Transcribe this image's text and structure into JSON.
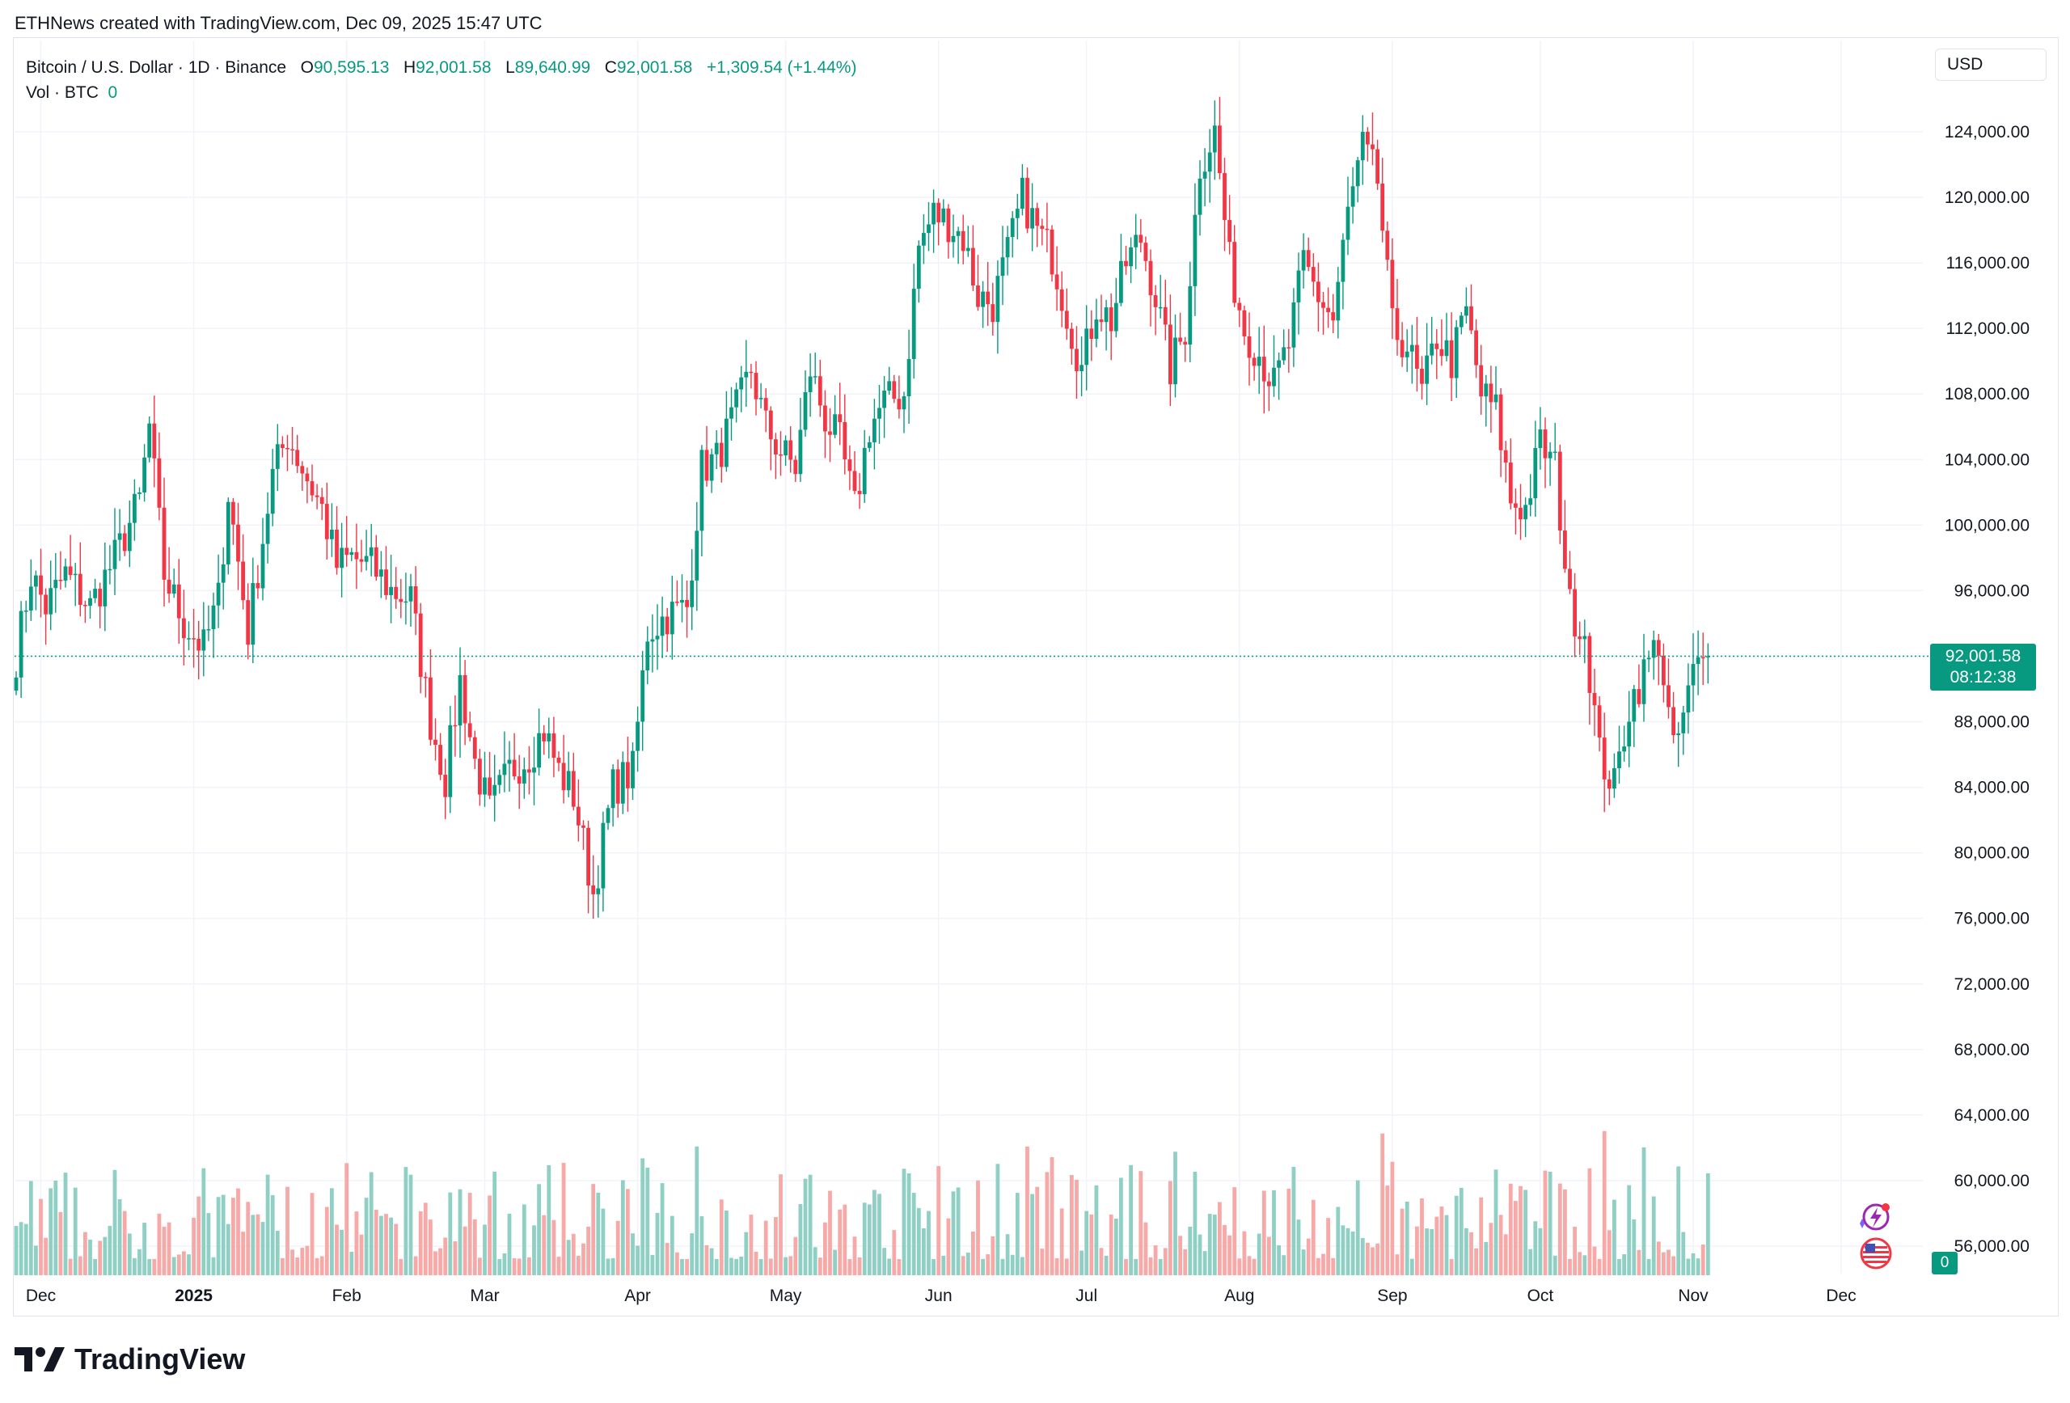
{
  "credit": "ETHNews created with TradingView.com, Dec 09, 2025 15:47 UTC",
  "legend": {
    "symbol": "Bitcoin / U.S. Dollar · 1D · Binance",
    "o_label": "O",
    "o_value": "90,595.13",
    "h_label": "H",
    "h_value": "92,001.58",
    "l_label": "L",
    "l_value": "89,640.99",
    "c_label": "C",
    "c_value": "92,001.58",
    "change": "+1,309.54 (+1.44%)",
    "vol_label": "Vol · BTC",
    "vol_value": "0"
  },
  "currency_button": "USD",
  "price_tag": {
    "price": "92,001.58",
    "countdown": "08:12:38"
  },
  "volume_tag": "0",
  "brand": "TradingView",
  "icons": [
    "lightning-icon",
    "us-flag-icon",
    "tradingview-logo-icon"
  ],
  "colors": {
    "up": "#089981",
    "down": "#f23645",
    "up_vol": "#8fcfc4",
    "down_vol": "#f7a9a7",
    "grid": "#f0f3fa"
  },
  "chart_data": {
    "type": "candlestick",
    "title": "Bitcoin / U.S. Dollar · 1D · Binance",
    "y_ticks": [
      124000,
      120000,
      116000,
      112000,
      108000,
      104000,
      100000,
      96000,
      92000,
      88000,
      84000,
      80000,
      76000,
      72000,
      68000,
      64000,
      60000,
      56000
    ],
    "y_tick_labels": [
      "124,000.00",
      "120,000.00",
      "116,000.00",
      "112,000.00",
      "108,000.00",
      "104,000.00",
      "100,000.00",
      "96,000.00",
      "92,000.00",
      "88,000.00",
      "84,000.00",
      "80,000.00",
      "76,000.00",
      "72,000.00",
      "68,000.00",
      "64,000.00",
      "60,000.00",
      "56,000.00"
    ],
    "ylim": [
      53500,
      128000
    ],
    "x_labels": [
      "Dec",
      "2025",
      "Feb",
      "Mar",
      "Apr",
      "May",
      "Jun",
      "Jul",
      "Aug",
      "Sep",
      "Oct",
      "Nov",
      "Dec"
    ],
    "x_label_days": [
      5,
      36,
      67,
      95,
      126,
      156,
      187,
      217,
      248,
      279,
      309,
      340,
      370
    ],
    "total_days": 378,
    "anchors": [
      [
        0,
        92000
      ],
      [
        3,
        97000
      ],
      [
        6,
        95000
      ],
      [
        10,
        97000
      ],
      [
        15,
        95000
      ],
      [
        20,
        98000
      ],
      [
        25,
        101500
      ],
      [
        27,
        106000
      ],
      [
        30,
        97000
      ],
      [
        34,
        94000
      ],
      [
        38,
        92500
      ],
      [
        41,
        95500
      ],
      [
        43,
        102000
      ],
      [
        47,
        93500
      ],
      [
        52,
        103000
      ],
      [
        55,
        105500
      ],
      [
        58,
        103500
      ],
      [
        62,
        101000
      ],
      [
        65,
        97500
      ],
      [
        68,
        98000
      ],
      [
        72,
        97500
      ],
      [
        76,
        96000
      ],
      [
        80,
        95500
      ],
      [
        84,
        88000
      ],
      [
        87,
        84500
      ],
      [
        90,
        90500
      ],
      [
        93,
        85500
      ],
      [
        96,
        82500
      ],
      [
        100,
        85000
      ],
      [
        104,
        86000
      ],
      [
        107,
        87500
      ],
      [
        110,
        85000
      ],
      [
        113,
        83500
      ],
      [
        117,
        77500
      ],
      [
        121,
        84000
      ],
      [
        125,
        85000
      ],
      [
        128,
        93500
      ],
      [
        132,
        94500
      ],
      [
        136,
        95000
      ],
      [
        139,
        103500
      ],
      [
        142,
        104000
      ],
      [
        146,
        107000
      ],
      [
        149,
        109500
      ],
      [
        152,
        106000
      ],
      [
        155,
        104500
      ],
      [
        158,
        103500
      ],
      [
        161,
        109500
      ],
      [
        164,
        106500
      ],
      [
        167,
        105000
      ],
      [
        170,
        101000
      ],
      [
        173,
        106000
      ],
      [
        176,
        107500
      ],
      [
        180,
        108000
      ],
      [
        183,
        117000
      ],
      [
        186,
        119000
      ],
      [
        189,
        118500
      ],
      [
        192,
        117500
      ],
      [
        195,
        114000
      ],
      [
        198,
        113500
      ],
      [
        201,
        116500
      ],
      [
        204,
        120000
      ],
      [
        207,
        118000
      ],
      [
        210,
        116500
      ],
      [
        213,
        113000
      ],
      [
        216,
        109500
      ],
      [
        219,
        113500
      ],
      [
        222,
        112500
      ],
      [
        225,
        116000
      ],
      [
        228,
        117500
      ],
      [
        231,
        114000
      ],
      [
        234,
        109500
      ],
      [
        237,
        112000
      ],
      [
        240,
        122000
      ],
      [
        243,
        124000
      ],
      [
        246,
        116000
      ],
      [
        249,
        112000
      ],
      [
        252,
        110500
      ],
      [
        255,
        108500
      ],
      [
        258,
        111000
      ],
      [
        261,
        116000
      ],
      [
        264,
        114000
      ],
      [
        267,
        112500
      ],
      [
        270,
        119000
      ],
      [
        273,
        123000
      ],
      [
        276,
        121000
      ],
      [
        279,
        112000
      ],
      [
        282,
        111000
      ],
      [
        285,
        108000
      ],
      [
        288,
        111500
      ],
      [
        291,
        110000
      ],
      [
        294,
        113000
      ],
      [
        297,
        108000
      ],
      [
        300,
        107000
      ],
      [
        303,
        101500
      ],
      [
        306,
        101000
      ],
      [
        309,
        105000
      ],
      [
        312,
        103500
      ],
      [
        315,
        95000
      ],
      [
        318,
        93500
      ],
      [
        321,
        86000
      ],
      [
        324,
        84000
      ],
      [
        327,
        89000
      ],
      [
        330,
        91000
      ],
      [
        333,
        93000
      ],
      [
        336,
        86000
      ],
      [
        339,
        89500
      ],
      [
        340,
        91000
      ],
      [
        343,
        92000
      ]
    ]
  }
}
